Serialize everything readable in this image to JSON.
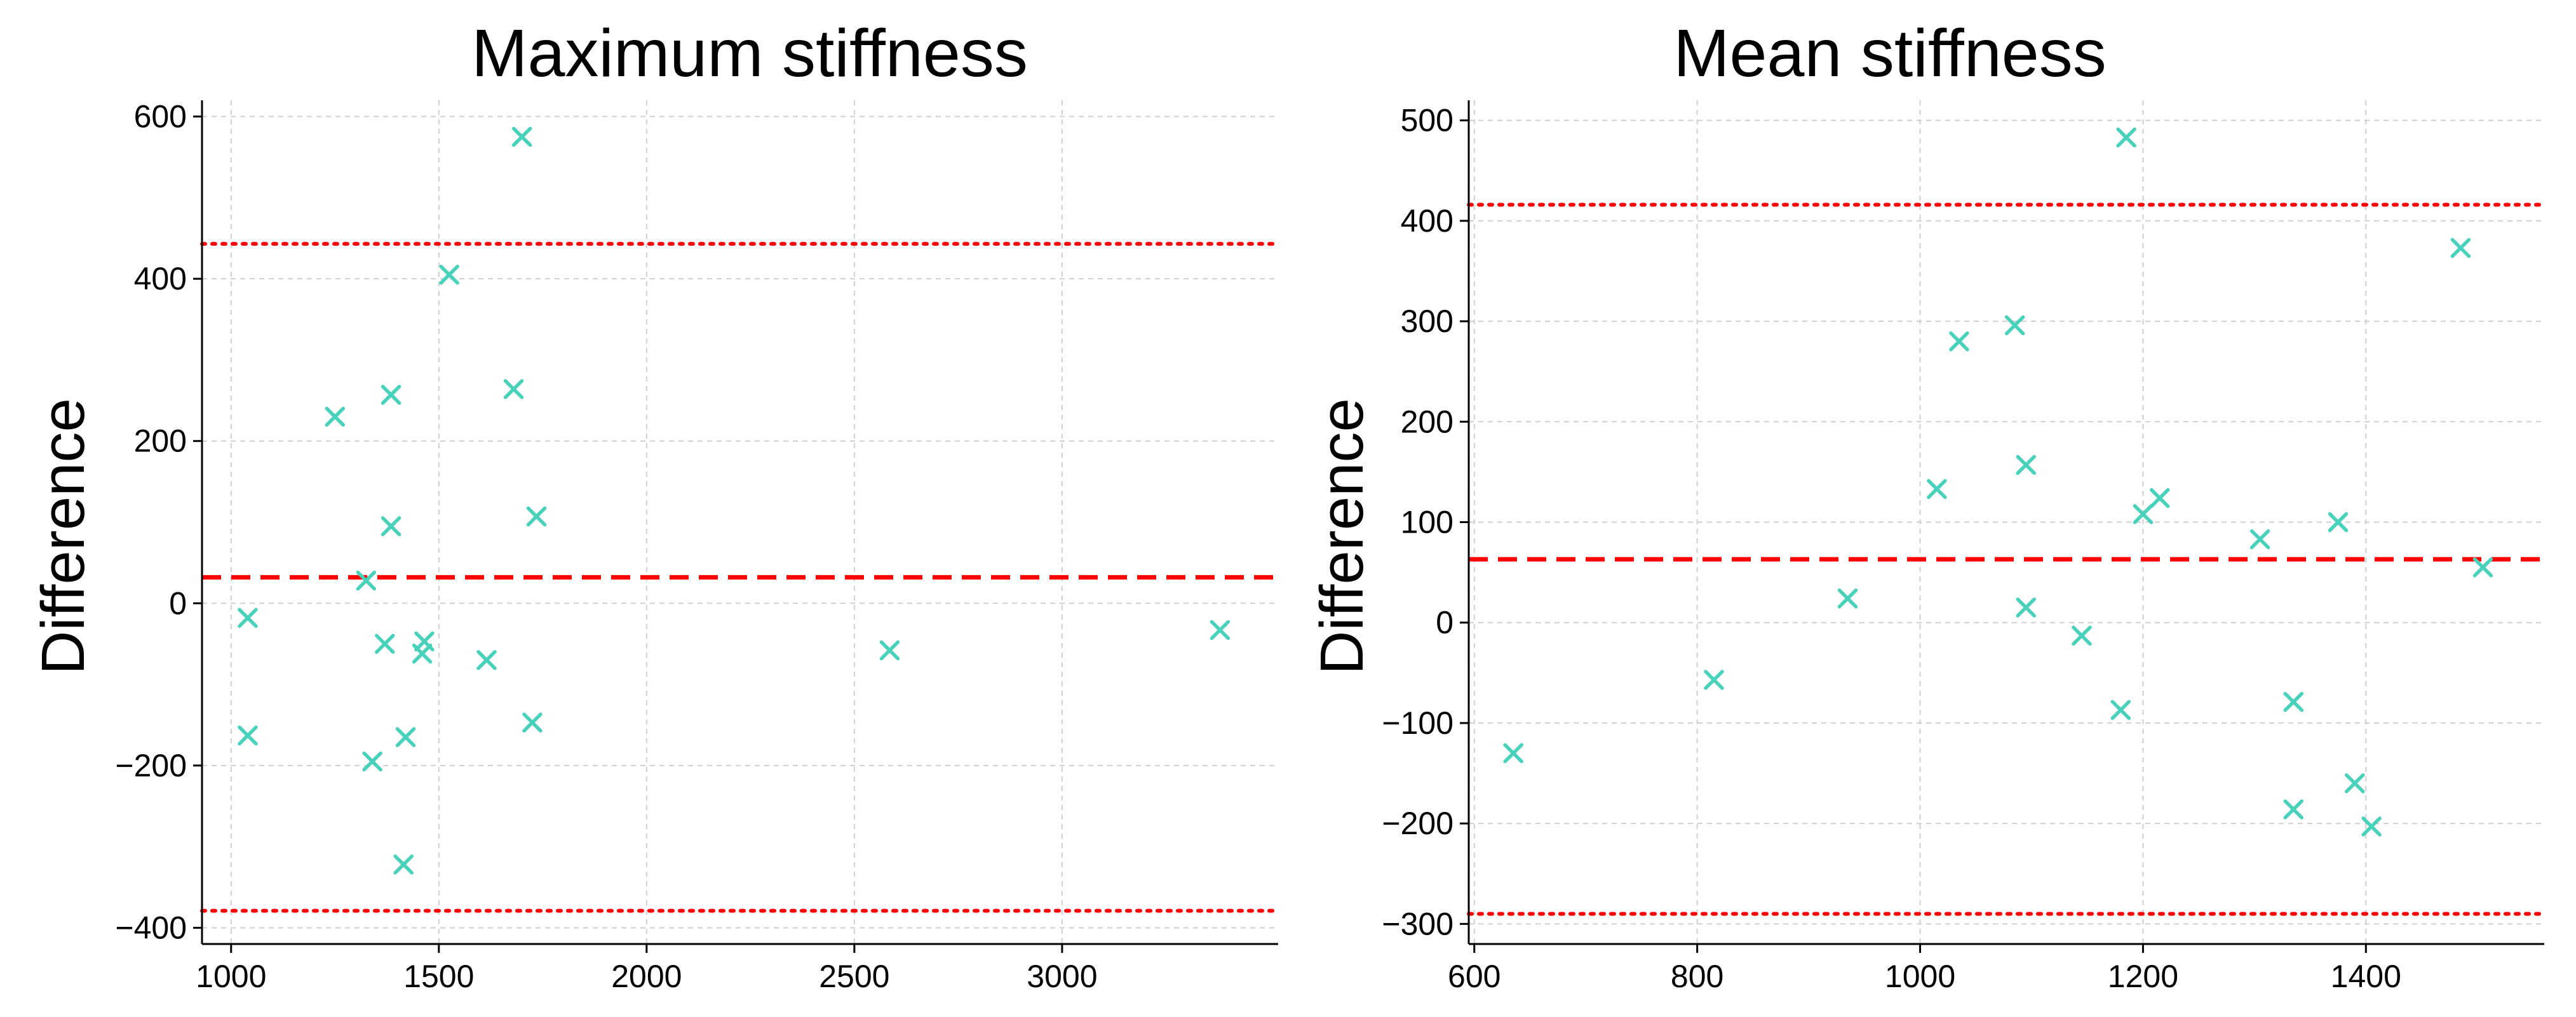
{
  "chart_data": [
    {
      "type": "scatter",
      "title": "Maximum stiffness",
      "xlabel": "",
      "ylabel": "Difference",
      "xlim": [
        930,
        3520
      ],
      "ylim": [
        -420,
        620
      ],
      "xticks": [
        1000,
        1500,
        2000,
        2500,
        3000
      ],
      "yticks": [
        -400,
        -200,
        0,
        200,
        400,
        600
      ],
      "xtick_labels": [
        "1000",
        "1500",
        "2000",
        "2500",
        "3000"
      ],
      "ytick_labels": [
        "−400",
        "−200",
        "0",
        "200",
        "400",
        "600"
      ],
      "grid": true,
      "marker_color": "#48d1bb",
      "line_color": "#ff0000",
      "mean_difference": 32,
      "upper_limit": 443,
      "lower_limit": -379,
      "x": [
        1700,
        1525,
        1250,
        1385,
        1680,
        1735,
        1385,
        1325,
        1040,
        1370,
        1465,
        1460,
        1615,
        1040,
        1420,
        1340,
        1725,
        1415,
        2585,
        3380
      ],
      "y": [
        575,
        405,
        230,
        257,
        264,
        107,
        95,
        28,
        -18,
        -50,
        -47,
        -62,
        -70,
        -163,
        -165,
        -195,
        -147,
        -322,
        -58,
        -33
      ]
    },
    {
      "type": "scatter",
      "title": "Mean stiffness",
      "xlabel": "",
      "ylabel": "Difference",
      "xlim": [
        595,
        1560
      ],
      "ylim": [
        -320,
        520
      ],
      "xticks": [
        600,
        800,
        1000,
        1200,
        1400
      ],
      "yticks": [
        -300,
        -200,
        -100,
        0,
        100,
        200,
        300,
        400,
        500
      ],
      "xtick_labels": [
        "600",
        "800",
        "1000",
        "1200",
        "1400"
      ],
      "ytick_labels": [
        "−300",
        "−200",
        "−100",
        "0",
        "100",
        "200",
        "300",
        "400",
        "500"
      ],
      "grid": true,
      "marker_color": "#48d1bb",
      "line_color": "#ff0000",
      "mean_difference": 63,
      "upper_limit": 416,
      "lower_limit": -290,
      "x": [
        635,
        815,
        935,
        1015,
        1035,
        1085,
        1095,
        1095,
        1145,
        1180,
        1185,
        1200,
        1215,
        1305,
        1335,
        1335,
        1375,
        1390,
        1405,
        1485,
        1505
      ],
      "y": [
        -130,
        -57,
        24,
        133,
        280,
        296,
        157,
        15,
        -13,
        -87,
        483,
        108,
        124,
        83,
        -79,
        -186,
        100,
        -160,
        -203,
        373,
        55
      ]
    }
  ]
}
